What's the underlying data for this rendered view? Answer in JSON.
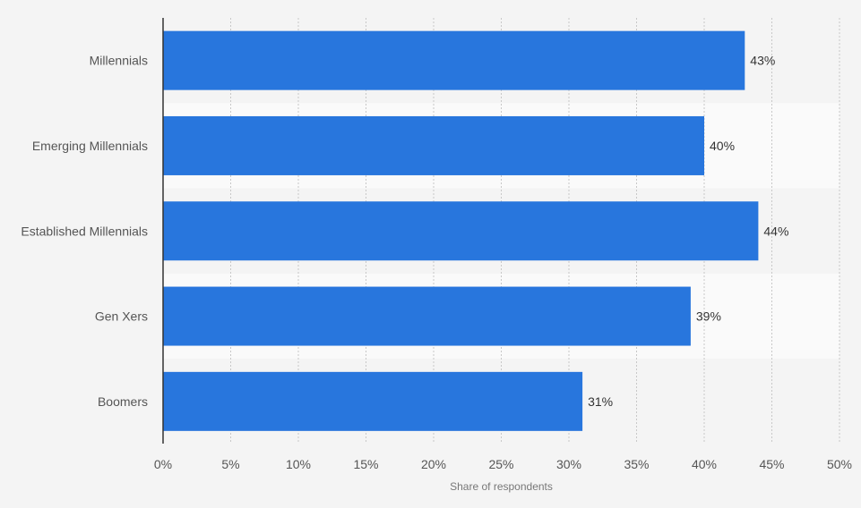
{
  "chart_data": {
    "type": "bar",
    "orientation": "horizontal",
    "categories": [
      "Millennials",
      "Emerging Millennials",
      "Established Millennials",
      "Gen Xers",
      "Boomers"
    ],
    "values": [
      43,
      40,
      44,
      39,
      31
    ],
    "value_labels": [
      "43%",
      "40%",
      "44%",
      "39%",
      "31%"
    ],
    "xlabel": "Share of respondents",
    "ylabel": "",
    "xlim": [
      0,
      50
    ],
    "ticks": [
      0,
      5,
      10,
      15,
      20,
      25,
      30,
      35,
      40,
      45,
      50
    ],
    "tick_labels": [
      "0%",
      "5%",
      "10%",
      "15%",
      "20%",
      "25%",
      "30%",
      "35%",
      "40%",
      "45%",
      "50%"
    ],
    "grid": true,
    "legend": "none",
    "colors": {
      "bar": "#2876dd",
      "band_light": "#fafafa",
      "band_dark": "#f4f4f4",
      "grid": "#c8c8c8",
      "axis": "#333333"
    }
  }
}
